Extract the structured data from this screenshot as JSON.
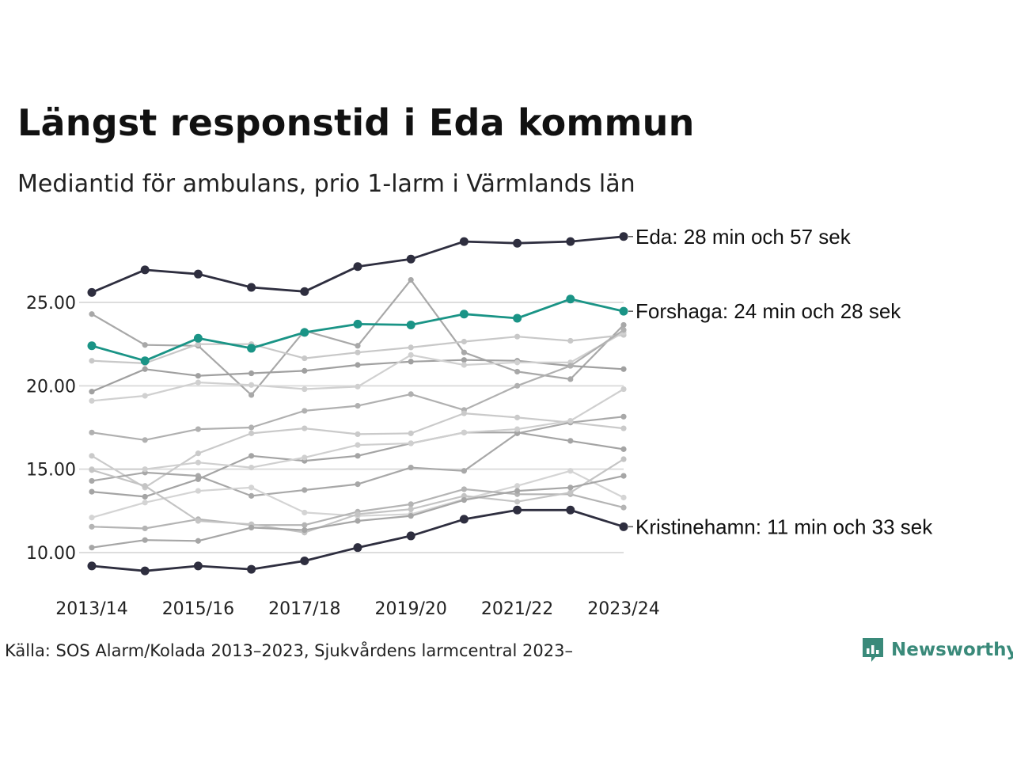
{
  "title": "Längst responstid i Eda kommun",
  "subtitle": "Mediantid för ambulans, prio 1-larm i Värmlands län",
  "source": "Källa: SOS Alarm/Kolada 2013–2023, Sjukvårdens larmcentral 2023–",
  "logo": {
    "text": "Newsworthy",
    "icon": "newsworthy-chart-icon",
    "color": "#3a8a7a"
  },
  "colors": {
    "highlight_dark": "#2e2e3f",
    "highlight_teal": "#1a9486",
    "background_lines": "#b8b8b8",
    "grid": "#dddddd"
  },
  "chart_data": {
    "type": "line",
    "x": [
      "2013/14",
      "2014/15",
      "2015/16",
      "2016/17",
      "2017/18",
      "2018/19",
      "2019/20",
      "2020/21",
      "2021/22",
      "2022/23",
      "2023/24"
    ],
    "x_tick_labels": [
      "2013/14",
      "2015/16",
      "2017/18",
      "2019/20",
      "2021/22",
      "2023/24"
    ],
    "y_ticks": [
      "10.00",
      "15.00",
      "20.00",
      "25.00"
    ],
    "y_tick_values": [
      10,
      15,
      20,
      25
    ],
    "ylim": [
      8.5,
      29.5
    ],
    "grid": "horizontal",
    "highlighted": [
      {
        "label": "Eda: 28 min och 57 sek",
        "color": "#2e2e3f",
        "values": [
          25.6,
          26.95,
          26.7,
          25.9,
          25.65,
          27.15,
          27.6,
          28.65,
          28.55,
          28.65,
          28.95
        ]
      },
      {
        "label": "Forshaga: 24 min och 28 sek",
        "color": "#1a9486",
        "values": [
          22.4,
          21.5,
          22.85,
          22.25,
          23.2,
          23.7,
          23.65,
          24.3,
          24.05,
          25.2,
          24.47
        ]
      },
      {
        "label": "Kristinehamn: 11 min och 33 sek",
        "color": "#2e2e3f",
        "values": [
          9.2,
          8.9,
          9.2,
          9.0,
          9.5,
          10.3,
          11.0,
          12.0,
          12.55,
          12.55,
          11.55
        ]
      }
    ],
    "other_series": [
      {
        "color": "#a8a8a8",
        "values": [
          24.3,
          22.45,
          22.4,
          19.45,
          23.3,
          22.4,
          26.35,
          22.0,
          20.85,
          20.4,
          23.65
        ]
      },
      {
        "color": "#c8c8c8",
        "values": [
          21.5,
          21.35,
          22.5,
          22.5,
          21.65,
          22.0,
          22.3,
          22.65,
          22.95,
          22.7,
          23.05
        ]
      },
      {
        "color": "#a0a0a0",
        "values": [
          19.65,
          21.0,
          20.6,
          20.75,
          20.9,
          21.25,
          21.45,
          21.55,
          21.5,
          21.2,
          21.0
        ]
      },
      {
        "color": "#d0d0d0",
        "values": [
          19.1,
          19.4,
          20.2,
          20.05,
          19.8,
          19.95,
          21.85,
          21.25,
          21.4,
          21.4,
          23.2
        ]
      },
      {
        "color": "#b0b0b0",
        "values": [
          17.2,
          16.75,
          17.4,
          17.5,
          18.5,
          18.8,
          19.5,
          18.55,
          20.0,
          21.2,
          23.35
        ]
      },
      {
        "color": "#cacaca",
        "values": [
          15.8,
          13.9,
          15.95,
          17.15,
          17.45,
          17.1,
          17.15,
          18.35,
          18.1,
          17.8,
          17.45
        ]
      },
      {
        "color": "#a8a8a8",
        "values": [
          14.3,
          14.8,
          14.6,
          13.4,
          13.75,
          14.1,
          15.1,
          14.9,
          17.15,
          17.8,
          18.15
        ]
      },
      {
        "color": "#d4d4d4",
        "values": [
          12.1,
          13.0,
          13.7,
          13.9,
          12.4,
          12.2,
          12.3,
          13.2,
          14.0,
          14.9,
          13.3
        ]
      },
      {
        "color": "#a4a4a4",
        "values": [
          13.65,
          13.35,
          14.4,
          15.8,
          15.5,
          15.8,
          16.55,
          17.2,
          17.2,
          16.7,
          16.2
        ]
      },
      {
        "color": "#cfcfcf",
        "values": [
          15.0,
          15.0,
          15.4,
          15.1,
          15.7,
          16.45,
          16.55,
          17.2,
          17.4,
          17.9,
          19.8
        ]
      },
      {
        "color": "#b4b4b4",
        "values": [
          11.55,
          11.45,
          12.0,
          11.65,
          11.65,
          12.45,
          12.9,
          13.8,
          13.5,
          13.5,
          12.7
        ]
      },
      {
        "color": "#c4c4c4",
        "values": [
          14.95,
          14.0,
          11.9,
          11.7,
          11.2,
          12.3,
          12.6,
          13.4,
          13.05,
          13.6,
          15.6
        ]
      },
      {
        "color": "#a6a6a6",
        "values": [
          10.3,
          10.75,
          10.7,
          11.5,
          11.35,
          11.9,
          12.2,
          13.15,
          13.7,
          13.9,
          14.6
        ]
      }
    ]
  }
}
